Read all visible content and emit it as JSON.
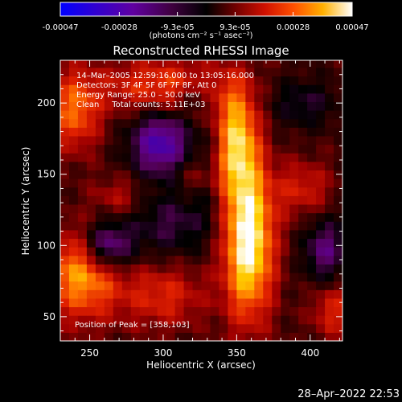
{
  "chart_data": {
    "type": "heatmap",
    "title": "Reconstructed RHESSI Image",
    "xlabel": "Heliocentric X (arcsec)",
    "ylabel": "Heliocentric Y (arcsec)",
    "xlim": [
      230,
      422
    ],
    "ylim": [
      33,
      230
    ],
    "x_ticks": [
      250,
      300,
      350,
      400
    ],
    "y_ticks": [
      50,
      100,
      150,
      200
    ],
    "colorbar": {
      "min": -0.00047,
      "max": 0.00047,
      "tick_values": [
        -0.00047,
        -0.00028,
        -9.3e-05,
        9.3e-05,
        0.00028,
        0.00047
      ],
      "tick_labels": [
        "-0.00047",
        "-0.00028",
        "-9.3e-05",
        "9.3e-05",
        "0.00028",
        "0.00047"
      ],
      "units_label": "(photons cm⁻² s⁻¹ asec⁻²)",
      "colormap": [
        "#0000ff",
        "#4000b0",
        "#600090",
        "#500050",
        "#000000",
        "#3a0000",
        "#a00000",
        "#e02000",
        "#ff7000",
        "#ffd000",
        "#ffffff"
      ]
    },
    "annotations": {
      "time_range": "14–Mar–2005 12:59:16.000 to 13:05:16.000",
      "detectors": "Detectors: 3F 4F 5F 6F 7F 8F, Att 0",
      "energy": "Energy Range: 25.0 – 50.0 keV",
      "method_counts": "Clean     Total counts: 5.11E+03",
      "peak": "Position of Peak = [358,103]"
    },
    "peak": [
      358,
      103
    ],
    "grid_step_arcsec": 6,
    "blobs": [
      {
        "x": 358,
        "y": 103,
        "sx": 12,
        "sy": 38,
        "amp": 0.00048
      },
      {
        "x": 350,
        "y": 175,
        "sx": 10,
        "sy": 28,
        "amp": 0.00036
      },
      {
        "x": 245,
        "y": 80,
        "sx": 18,
        "sy": 22,
        "amp": 0.00034
      },
      {
        "x": 240,
        "y": 195,
        "sx": 12,
        "sy": 20,
        "amp": 0.00026
      },
      {
        "x": 300,
        "y": 212,
        "sx": 30,
        "sy": 14,
        "amp": 0.00022
      },
      {
        "x": 395,
        "y": 140,
        "sx": 14,
        "sy": 14,
        "amp": 0.00016
      },
      {
        "x": 325,
        "y": 150,
        "sx": 10,
        "sy": 10,
        "amp": 0.00014
      },
      {
        "x": 300,
        "y": 65,
        "sx": 20,
        "sy": 16,
        "amp": 0.00018
      },
      {
        "x": 270,
        "y": 135,
        "sx": 12,
        "sy": 10,
        "amp": 0.00012
      },
      {
        "x": 415,
        "y": 55,
        "sx": 10,
        "sy": 14,
        "amp": 0.00018
      },
      {
        "x": 298,
        "y": 172,
        "sx": 14,
        "sy": 16,
        "amp": -0.00036
      },
      {
        "x": 262,
        "y": 100,
        "sx": 12,
        "sy": 12,
        "amp": -0.00034
      },
      {
        "x": 410,
        "y": 97,
        "sx": 10,
        "sy": 16,
        "amp": -0.00024
      },
      {
        "x": 330,
        "y": 150,
        "sx": 8,
        "sy": 20,
        "amp": -0.0001
      },
      {
        "x": 395,
        "y": 200,
        "sx": 16,
        "sy": 12,
        "amp": -0.00014
      },
      {
        "x": 322,
        "y": 205,
        "sx": 8,
        "sy": 8,
        "amp": -0.00012
      },
      {
        "x": 305,
        "y": 115,
        "sx": 20,
        "sy": 16,
        "amp": -0.00016
      }
    ]
  },
  "footer": {
    "timestamp": "28–Apr–2022 22:53"
  }
}
